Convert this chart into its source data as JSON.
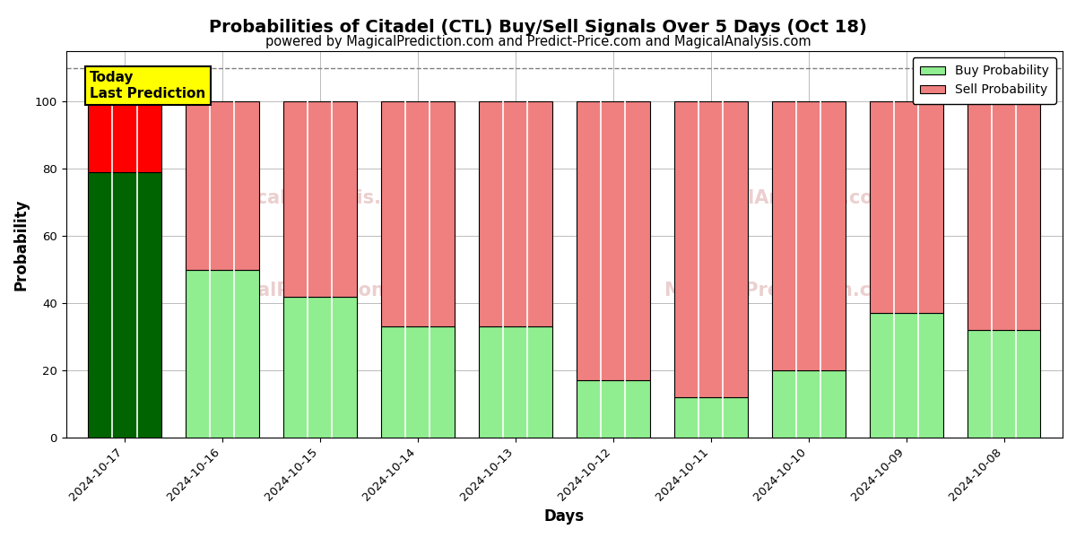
{
  "title": "Probabilities of Citadel (CTL) Buy/Sell Signals Over 5 Days (Oct 18)",
  "subtitle": "powered by MagicalPrediction.com and Predict-Price.com and MagicalAnalysis.com",
  "xlabel": "Days",
  "ylabel": "Probability",
  "dates": [
    "2024-10-17",
    "2024-10-16",
    "2024-10-15",
    "2024-10-14",
    "2024-10-13",
    "2024-10-12",
    "2024-10-11",
    "2024-10-10",
    "2024-10-09",
    "2024-10-08"
  ],
  "buy_values": [
    79,
    50,
    42,
    33,
    33,
    17,
    12,
    20,
    37,
    32
  ],
  "sell_values": [
    21,
    50,
    58,
    67,
    67,
    83,
    88,
    80,
    63,
    68
  ],
  "today_buy_color": "#006400",
  "today_sell_color": "#FF0000",
  "buy_color": "#90EE90",
  "sell_color": "#F08080",
  "today_annotation_text": "Today\nLast Prediction",
  "today_annotation_bg": "#FFFF00",
  "dashed_line_y": 110,
  "ylim": [
    0,
    115
  ],
  "yticks": [
    0,
    20,
    40,
    60,
    80,
    100
  ],
  "legend_buy_label": "Buy Probability",
  "legend_sell_label": "Sell Probability",
  "bar_edge_color": "#000000",
  "bar_linewidth": 0.8,
  "grid_color": "#bbbbbb",
  "background_color": "#ffffff",
  "title_fontsize": 14,
  "subtitle_fontsize": 10.5,
  "axis_label_fontsize": 12,
  "tick_fontsize": 9.5,
  "bar_width": 0.75,
  "n_sub_bars": 3
}
